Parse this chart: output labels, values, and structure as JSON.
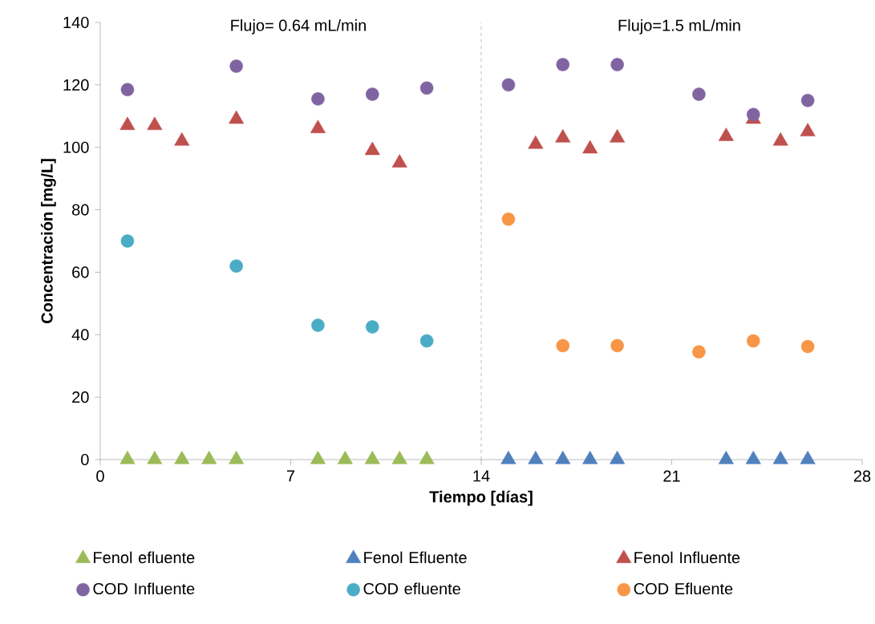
{
  "chart_data": {
    "type": "scatter",
    "xlabel": "Tiempo [días]",
    "ylabel": "Concentración [mg/L]",
    "annotations": [
      "Flujo= 0.64  mL/min",
      "Flujo=1.5 mL/min"
    ],
    "xlim": [
      0,
      28
    ],
    "xticks": [
      0,
      7,
      14,
      21,
      28
    ],
    "ylim": [
      0,
      140
    ],
    "yticks": [
      0,
      20,
      40,
      60,
      80,
      100,
      120,
      140
    ],
    "grid": false,
    "legend": "bottom",
    "ref_lines": [
      {
        "axis": "x",
        "value": 14,
        "color": "#808080",
        "line_style": "dashed"
      }
    ],
    "series": [
      {
        "name": "Fenol efluente",
        "color": "#9bbb59",
        "marker": "triangle",
        "x": [
          1,
          2,
          3,
          4,
          5,
          8,
          9,
          10,
          11,
          12
        ],
        "values": [
          0,
          0,
          0,
          0,
          0,
          0,
          0,
          0,
          0,
          0
        ]
      },
      {
        "name": "Fenol Efluente",
        "color": "#4f81bd",
        "marker": "triangle",
        "x": [
          15,
          16,
          17,
          18,
          19,
          23,
          24,
          25,
          26
        ],
        "values": [
          0,
          0,
          0,
          0,
          0,
          0,
          0,
          0,
          0
        ]
      },
      {
        "name": "Fenol Influente",
        "color": "#c0504d",
        "marker": "triangle",
        "x": [
          1,
          2,
          3,
          5,
          8,
          10,
          11,
          16,
          17,
          18,
          19,
          23,
          24,
          25,
          26
        ],
        "values": [
          107,
          107,
          102,
          109,
          106,
          99,
          95,
          101,
          103,
          99.5,
          103,
          103.5,
          109,
          102,
          105
        ]
      },
      {
        "name": "COD Influente",
        "color": "#8064a2",
        "marker": "circle",
        "x": [
          1,
          5,
          8,
          10,
          12,
          15,
          17,
          19,
          22,
          24,
          26
        ],
        "values": [
          118.5,
          126,
          115.5,
          117,
          119,
          120,
          126.5,
          126.5,
          117,
          110.5,
          115
        ]
      },
      {
        "name": "COD efluente",
        "color": "#4bacc6",
        "marker": "circle",
        "x": [
          1,
          5,
          8,
          10,
          12
        ],
        "values": [
          70,
          62,
          43,
          42.5,
          38
        ]
      },
      {
        "name": "COD Efluente",
        "color": "#f79646",
        "marker": "circle",
        "x": [
          15,
          17,
          19,
          22,
          24,
          26
        ],
        "values": [
          77,
          36.5,
          36.5,
          34.5,
          38,
          36.2
        ]
      }
    ]
  }
}
